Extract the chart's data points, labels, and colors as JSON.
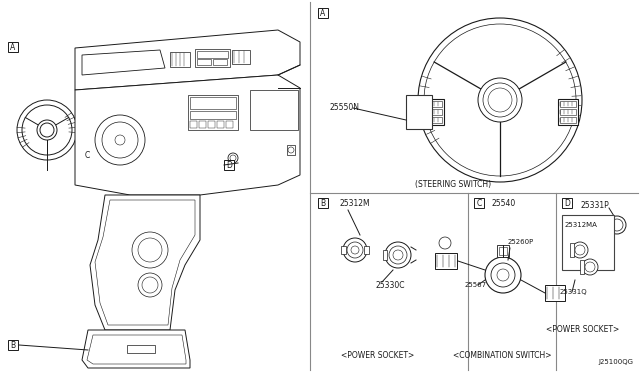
{
  "bg_color": "#ffffff",
  "line_color": "#1a1a1a",
  "divider_color": "#888888",
  "part_numbers": {
    "steering_switch": "25550N",
    "power_socket_B1": "25312M",
    "power_socket_B2": "25330C",
    "comb_switch_1": "25540",
    "comb_switch_2": "25260P",
    "comb_switch_3": "25567",
    "power_socket_D1": "25331P",
    "power_socket_D2": "25312MA",
    "power_socket_D3": "25331Q"
  },
  "section_labels": {
    "B": "<POWER SOCKET>",
    "C": "<COMBINATION SWITCH>",
    "D": "<POWER SOCKET>"
  },
  "diagram_label": "J25100QG",
  "steering_switch_label": "(STEERING SWITCH)"
}
